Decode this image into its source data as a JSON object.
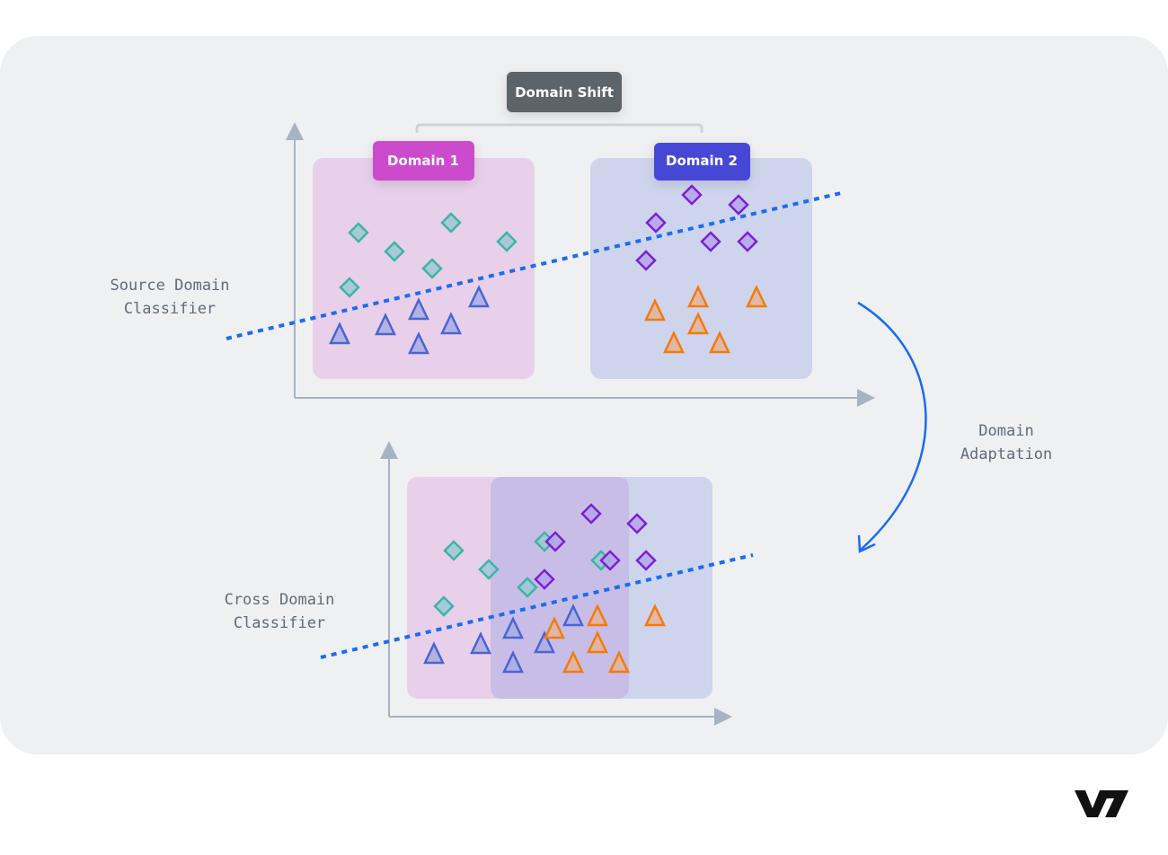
{
  "labels": {
    "domain_shift": "Domain Shift",
    "domain1": "Domain 1",
    "domain2": "Domain 2",
    "source_classifier": [
      "Source Domain",
      "Classifier"
    ],
    "cross_classifier": [
      "Cross Domain",
      "Classifier"
    ],
    "domain_adaptation": [
      "Domain",
      "Adaptation"
    ],
    "logo": "V7"
  },
  "colors": {
    "panel": "#eff0f1",
    "domain_shift_tag": "#5c6369",
    "domain1_tag": "#cc4bcc",
    "domain2_tag": "#4646d6",
    "domain1_region": "#e8d0ea",
    "domain2_region": "#cdd4ec",
    "teal_diamond": "#3bb5a8",
    "purple_diamond": "#7d1fd6",
    "blue_triangle": "#4a64d2",
    "orange_triangle": "#f47a0c",
    "classifier_line": "#1a6cf0",
    "axis": "#a7b3c4"
  }
}
